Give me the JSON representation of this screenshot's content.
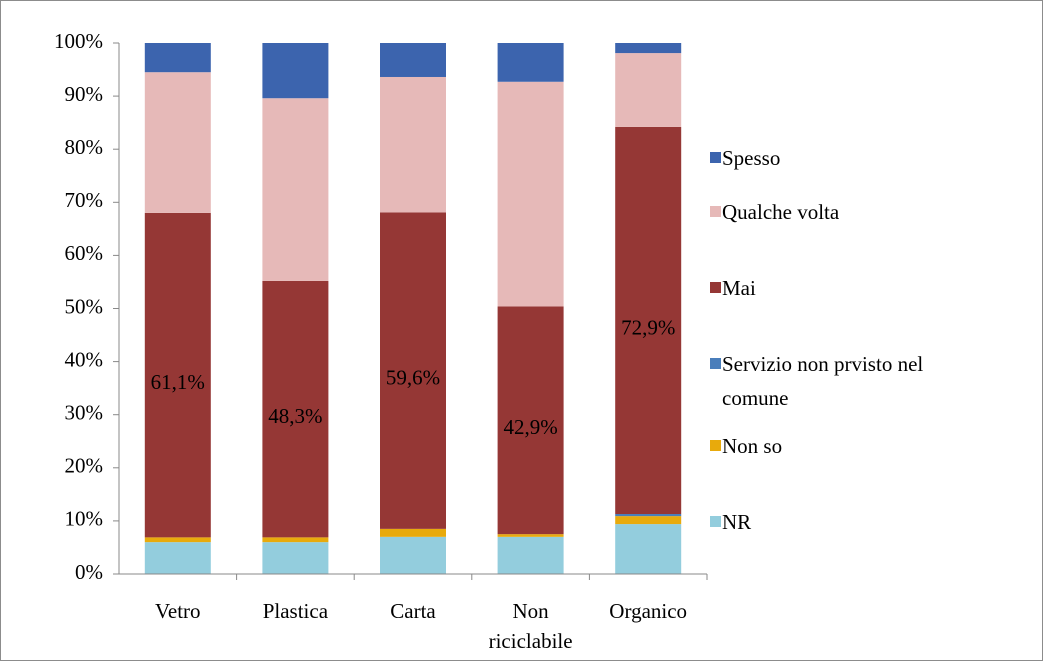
{
  "chart_data": {
    "type": "stacked_bar_100",
    "categories": [
      "Vetro",
      "Plastica",
      "Carta",
      "Non riciclabile",
      "Organico"
    ],
    "series": [
      {
        "name": "NR",
        "color": "#93cddd",
        "values": [
          6.0,
          6.0,
          7.0,
          7.0,
          9.4
        ]
      },
      {
        "name": "Non so",
        "color": "#e8aa0c",
        "values": [
          0.9,
          0.9,
          1.5,
          0.5,
          1.5
        ]
      },
      {
        "name": "Servizio non prvisto nel comune",
        "color": "#4a7ebb",
        "values": [
          0,
          0,
          0,
          0,
          0.4
        ]
      },
      {
        "name": "Mai",
        "color": "#953735",
        "values": [
          61.1,
          48.3,
          59.6,
          42.9,
          72.9
        ],
        "value_labels": [
          "61,1%",
          "48,3%",
          "59,6%",
          "42,9%",
          "72,9%"
        ]
      },
      {
        "name": "Qualche volta",
        "color": "#e6b9b8",
        "values": [
          26.5,
          34.4,
          25.5,
          42.3,
          13.9
        ]
      },
      {
        "name": "Spesso",
        "color": "#3c64ae",
        "values": [
          5.5,
          10.4,
          6.4,
          7.3,
          1.9
        ]
      }
    ],
    "ylim": [
      0,
      100
    ],
    "yticks": [
      {
        "value": 0,
        "label": "0%"
      },
      {
        "value": 10,
        "label": "10%"
      },
      {
        "value": 20,
        "label": "20%"
      },
      {
        "value": 30,
        "label": "30%"
      },
      {
        "value": 40,
        "label": "40%"
      },
      {
        "value": 50,
        "label": "50%"
      },
      {
        "value": 60,
        "label": "60%"
      },
      {
        "value": 70,
        "label": "70%"
      },
      {
        "value": 80,
        "label": "80%"
      },
      {
        "value": 90,
        "label": "90%"
      },
      {
        "value": 100,
        "label": "100%"
      }
    ],
    "legend": "right"
  }
}
